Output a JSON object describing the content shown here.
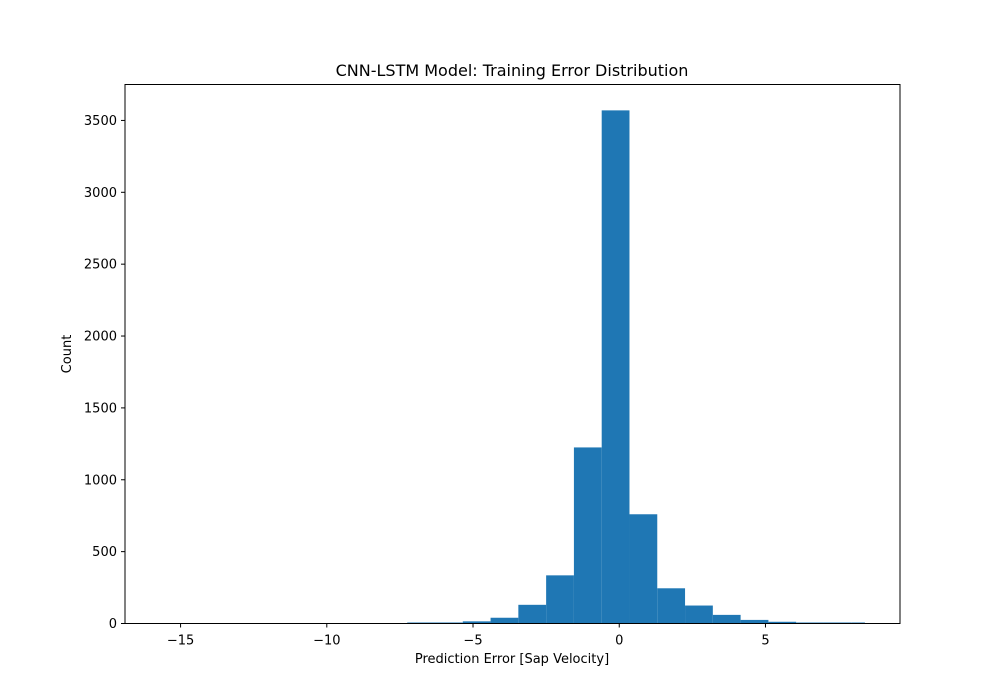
{
  "chart_data": {
    "type": "bar",
    "title": "CNN-LSTM Model: Training Error Distribution",
    "xlabel": "Prediction Error [Sap Velocity]",
    "ylabel": "Count",
    "xlim": [
      -16.9,
      9.6
    ],
    "ylim": [
      0,
      3750
    ],
    "xticks": [
      -15,
      -10,
      -5,
      0,
      5
    ],
    "yticks": [
      0,
      500,
      1000,
      1500,
      2000,
      2500,
      3000,
      3500
    ],
    "grid": false,
    "bar_color": "#1f77b4",
    "bins": [
      {
        "x0": -15.8,
        "x1": -14.85,
        "count": 0
      },
      {
        "x0": -14.85,
        "x1": -13.9,
        "count": 0
      },
      {
        "x0": -13.9,
        "x1": -12.95,
        "count": 0
      },
      {
        "x0": -12.95,
        "x1": -12.0,
        "count": 0
      },
      {
        "x0": -12.0,
        "x1": -11.05,
        "count": 0
      },
      {
        "x0": -11.05,
        "x1": -10.1,
        "count": 0
      },
      {
        "x0": -10.1,
        "x1": -9.15,
        "count": 0
      },
      {
        "x0": -9.15,
        "x1": -8.2,
        "count": 0
      },
      {
        "x0": -8.2,
        "x1": -7.25,
        "count": 0
      },
      {
        "x0": -7.25,
        "x1": -6.3,
        "count": 1
      },
      {
        "x0": -6.3,
        "x1": -5.35,
        "count": 4
      },
      {
        "x0": -5.35,
        "x1": -4.4,
        "count": 15
      },
      {
        "x0": -4.4,
        "x1": -3.45,
        "count": 40
      },
      {
        "x0": -3.45,
        "x1": -2.5,
        "count": 130
      },
      {
        "x0": -2.5,
        "x1": -1.55,
        "count": 335
      },
      {
        "x0": -1.55,
        "x1": -0.6,
        "count": 1225
      },
      {
        "x0": -0.6,
        "x1": 0.35,
        "count": 3570
      },
      {
        "x0": 0.35,
        "x1": 1.3,
        "count": 760
      },
      {
        "x0": 1.3,
        "x1": 2.25,
        "count": 245
      },
      {
        "x0": 2.25,
        "x1": 3.2,
        "count": 125
      },
      {
        "x0": 3.2,
        "x1": 4.15,
        "count": 60
      },
      {
        "x0": 4.15,
        "x1": 5.1,
        "count": 25
      },
      {
        "x0": 5.1,
        "x1": 6.05,
        "count": 12
      },
      {
        "x0": 6.05,
        "x1": 7.0,
        "count": 6
      },
      {
        "x0": 7.0,
        "x1": 7.95,
        "count": 3
      },
      {
        "x0": 7.95,
        "x1": 8.4,
        "count": 2
      }
    ]
  }
}
